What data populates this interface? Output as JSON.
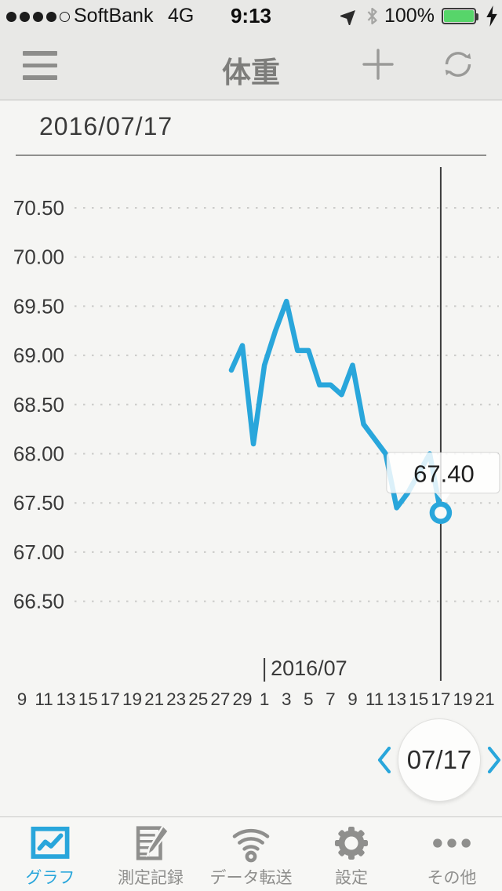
{
  "status_bar": {
    "carrier": "SoftBank",
    "network": "4G",
    "time": "9:13",
    "battery_percent": "100%"
  },
  "nav_bar": {
    "title": "体重"
  },
  "chart_header": {
    "selected_date": "2016/07/17"
  },
  "chart_data": {
    "type": "line",
    "title": "体重",
    "ylim": [
      66.5,
      70.5
    ],
    "grid": "dotted horizontal",
    "y_ticks": [
      "70.50",
      "70.00",
      "69.50",
      "69.00",
      "68.50",
      "68.00",
      "67.50",
      "67.00",
      "66.50"
    ],
    "x_ticks": [
      "9",
      "11",
      "13",
      "15",
      "17",
      "19",
      "21",
      "23",
      "25",
      "27",
      "29",
      "1",
      "3",
      "5",
      "7",
      "9",
      "11",
      "13",
      "15",
      "17",
      "19",
      "21"
    ],
    "month_label": "2016/07",
    "line_color": "#29a6db",
    "series": [
      {
        "name": "体重",
        "points": [
          {
            "date": "2016/06/28",
            "value": 68.85
          },
          {
            "date": "2016/06/29",
            "value": 69.1
          },
          {
            "date": "2016/06/30",
            "value": 68.1
          },
          {
            "date": "2016/07/01",
            "value": 68.9
          },
          {
            "date": "2016/07/02",
            "value": 69.25
          },
          {
            "date": "2016/07/03",
            "value": 69.55
          },
          {
            "date": "2016/07/04",
            "value": 69.05
          },
          {
            "date": "2016/07/05",
            "value": 69.05
          },
          {
            "date": "2016/07/06",
            "value": 68.7
          },
          {
            "date": "2016/07/07",
            "value": 68.7
          },
          {
            "date": "2016/07/08",
            "value": 68.6
          },
          {
            "date": "2016/07/09",
            "value": 68.9
          },
          {
            "date": "2016/07/10",
            "value": 68.3
          },
          {
            "date": "2016/07/11",
            "value": 68.15
          },
          {
            "date": "2016/07/12",
            "value": 68.0
          },
          {
            "date": "2016/07/13",
            "value": 67.45
          },
          {
            "date": "2016/07/14",
            "value": 67.6
          },
          {
            "date": "2016/07/15",
            "value": 67.8
          },
          {
            "date": "2016/07/16",
            "value": 68.0
          },
          {
            "date": "2016/07/17",
            "value": 67.4
          }
        ]
      }
    ],
    "selected_point": {
      "date": "2016/07/17",
      "label": "67.40"
    }
  },
  "date_nav": {
    "selected": "07/17"
  },
  "tab_bar": {
    "active_color": "#29a6db",
    "inactive_color": "#8f8f8d",
    "items": [
      {
        "label": "グラフ",
        "icon": "graph-icon",
        "active": true
      },
      {
        "label": "測定記録",
        "icon": "record-icon",
        "active": false
      },
      {
        "label": "データ転送",
        "icon": "transfer-icon",
        "active": false
      },
      {
        "label": "設定",
        "icon": "settings-icon",
        "active": false
      },
      {
        "label": "その他",
        "icon": "more-icon",
        "active": false
      }
    ]
  }
}
